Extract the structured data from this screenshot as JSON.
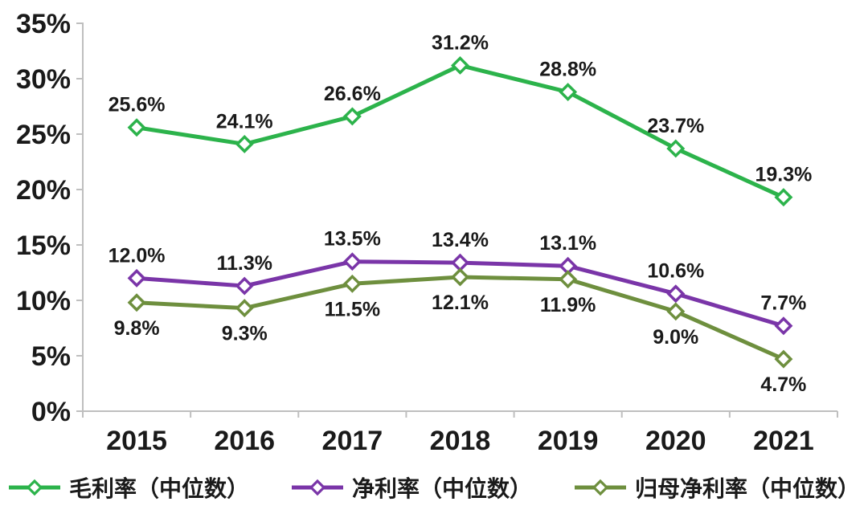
{
  "chart_data": {
    "type": "line",
    "title": "",
    "categories": [
      "2015",
      "2016",
      "2017",
      "2018",
      "2019",
      "2020",
      "2021"
    ],
    "y_axis": {
      "min": 0,
      "max": 35,
      "step": 5,
      "tick_labels": [
        "0%",
        "5%",
        "10%",
        "15%",
        "20%",
        "25%",
        "30%",
        "35%"
      ]
    },
    "grid": false,
    "legend_position": "bottom",
    "axis_color": "#bfbfbf",
    "text_color": "#1a1a1a",
    "marker_style": "hollow-diamond",
    "series": [
      {
        "name": "毛利率（中位数）",
        "color": "#2cb34b",
        "values": [
          25.6,
          24.1,
          26.6,
          31.2,
          28.8,
          23.7,
          19.3
        ],
        "labels": [
          "25.6%",
          "24.1%",
          "26.6%",
          "31.2%",
          "28.8%",
          "23.7%",
          "19.3%"
        ],
        "label_position": "above"
      },
      {
        "name": "净利率（中位数）",
        "color": "#7a35a8",
        "values": [
          12.0,
          11.3,
          13.5,
          13.4,
          13.1,
          10.6,
          7.7
        ],
        "labels": [
          "12.0%",
          "11.3%",
          "13.5%",
          "13.4%",
          "13.1%",
          "10.6%",
          "7.7%"
        ],
        "label_position": "above"
      },
      {
        "name": "归母净利率（中位数）",
        "color": "#6e8f3e",
        "values": [
          9.8,
          9.3,
          11.5,
          12.1,
          11.9,
          9.0,
          4.7
        ],
        "labels": [
          "9.8%",
          "9.3%",
          "11.5%",
          "12.1%",
          "11.9%",
          "9.0%",
          "4.7%"
        ],
        "label_position": "below"
      }
    ]
  }
}
